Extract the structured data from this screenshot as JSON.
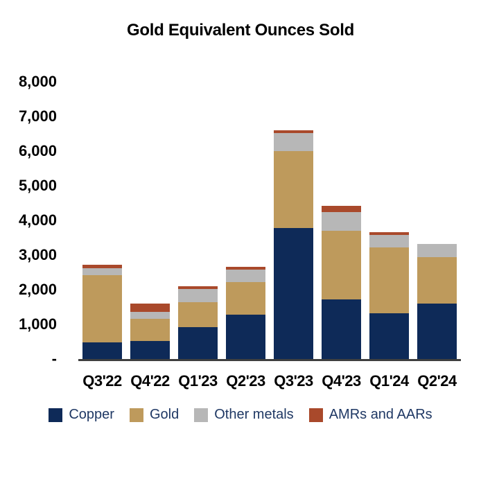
{
  "chart_data": {
    "type": "bar",
    "stacked": true,
    "title": "Gold Equivalent Ounces Sold",
    "categories": [
      "Q3'22",
      "Q4'22",
      "Q1'23",
      "Q2'23",
      "Q3'23",
      "Q4'23",
      "Q1'24",
      "Q2'24"
    ],
    "series": [
      {
        "name": "Copper",
        "color": "#0E2A58",
        "values": [
          485,
          530,
          930,
          1285,
          3775,
          1730,
          1330,
          1595
        ]
      },
      {
        "name": "Gold",
        "color": "#BE9A5C",
        "values": [
          1945,
          635,
          715,
          945,
          2220,
          1965,
          1885,
          1350
        ]
      },
      {
        "name": "Other metals",
        "color": "#B7B7B7",
        "values": [
          185,
          200,
          385,
          355,
          535,
          550,
          360,
          385
        ]
      },
      {
        "name": "AMRs and AARs",
        "color": "#A9492B",
        "values": [
          115,
          230,
          65,
          80,
          65,
          170,
          90,
          0
        ]
      }
    ],
    "totals": [
      2730,
      1595,
      2095,
      2665,
      6595,
      4415,
      3665,
      3330
    ],
    "ylim": [
      0,
      8000
    ],
    "ytick_interval": 1000,
    "ytick_labels": [
      "-",
      "1,000",
      "2,000",
      "3,000",
      "4,000",
      "5,000",
      "6,000",
      "7,000",
      "8,000"
    ],
    "grid": false,
    "legend_position": "bottom",
    "xlabel": "",
    "ylabel": "",
    "text_color": "#000000",
    "legend_text_color": "#1F3864",
    "axis_line_color": "#3f3f3f",
    "background_color": "#ffffff"
  }
}
